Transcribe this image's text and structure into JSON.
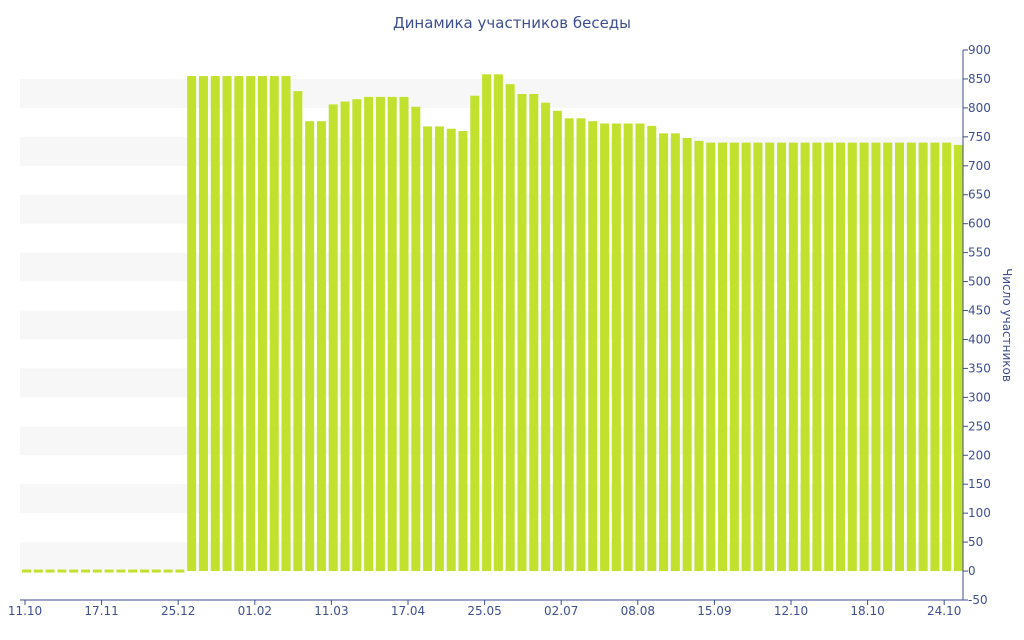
{
  "colors": {
    "bar": "#c2e02e",
    "band": "#f7f7f7",
    "axis": "#3e4f8f",
    "text": "#3e4f8f"
  },
  "chart_data": {
    "type": "bar",
    "title": "Динамика участников беседы",
    "ylabel": "Число участников",
    "xlabel": "",
    "ylim": [
      -50,
      900
    ],
    "yticks": [
      -50,
      0,
      50,
      100,
      150,
      200,
      250,
      300,
      350,
      400,
      450,
      500,
      550,
      600,
      650,
      700,
      750,
      800,
      850,
      900
    ],
    "ytick_labels": [
      "-50",
      "0",
      "50",
      "100",
      "150",
      "200",
      "250",
      "300",
      "350",
      "400",
      "450",
      "500",
      "550",
      "600",
      "650",
      "700",
      "750",
      "800",
      "850",
      "900"
    ],
    "x_tick_labels": [
      "11.10",
      "17.11",
      "25.12",
      "01.02",
      "11.03",
      "17.04",
      "25.05",
      "02.07",
      "08.08",
      "15.09",
      "12.10",
      "18.10",
      "24.10"
    ],
    "grid": "alternating horizontal bands",
    "y_axis_position": "right",
    "values": [
      0,
      0,
      0,
      0,
      0,
      0,
      0,
      0,
      0,
      0,
      0,
      0,
      0,
      0,
      855,
      855,
      855,
      855,
      855,
      855,
      855,
      855,
      855,
      829,
      777,
      777,
      806,
      811,
      815,
      819,
      819,
      819,
      819,
      802,
      768,
      768,
      764,
      760,
      821,
      858,
      858,
      841,
      824,
      824,
      809,
      795,
      782,
      782,
      777,
      773,
      773,
      773,
      773,
      769,
      756,
      756,
      748,
      743,
      740,
      740,
      740,
      740,
      740,
      740,
      740,
      740,
      740,
      740,
      740,
      740,
      740,
      740,
      740,
      740,
      740,
      740,
      740,
      740,
      740,
      736
    ]
  }
}
